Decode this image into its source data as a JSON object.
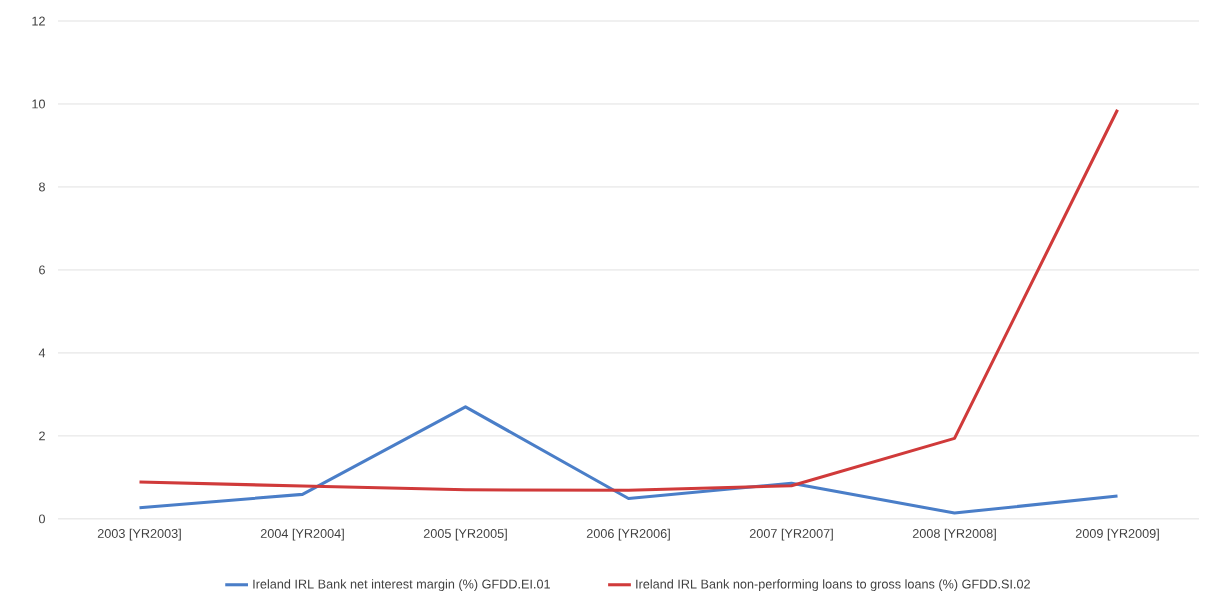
{
  "chart_data": {
    "type": "line",
    "categories": [
      "2003 [YR2003]",
      "2004 [YR2004]",
      "2005 [YR2005]",
      "2006 [YR2006]",
      "2007 [YR2007]",
      "2008 [YR2008]",
      "2009 [YR2009]"
    ],
    "series": [
      {
        "name": "Ireland IRL Bank net interest margin (%) GFDD.EI.01",
        "color": "#4a7ec8",
        "values": [
          0.27,
          0.59,
          2.7,
          0.49,
          0.86,
          0.14,
          0.55
        ]
      },
      {
        "name": "Ireland IRL Bank non-performing loans to gross loans (%) GFDD.SI.02",
        "color": "#d03a3a",
        "values": [
          0.89,
          0.79,
          0.7,
          0.69,
          0.8,
          1.94,
          9.86
        ]
      }
    ],
    "ylim": [
      0,
      12
    ],
    "yticks": [
      0,
      2,
      4,
      6,
      8,
      10,
      12
    ],
    "grid": "y",
    "legend": "bottom"
  }
}
